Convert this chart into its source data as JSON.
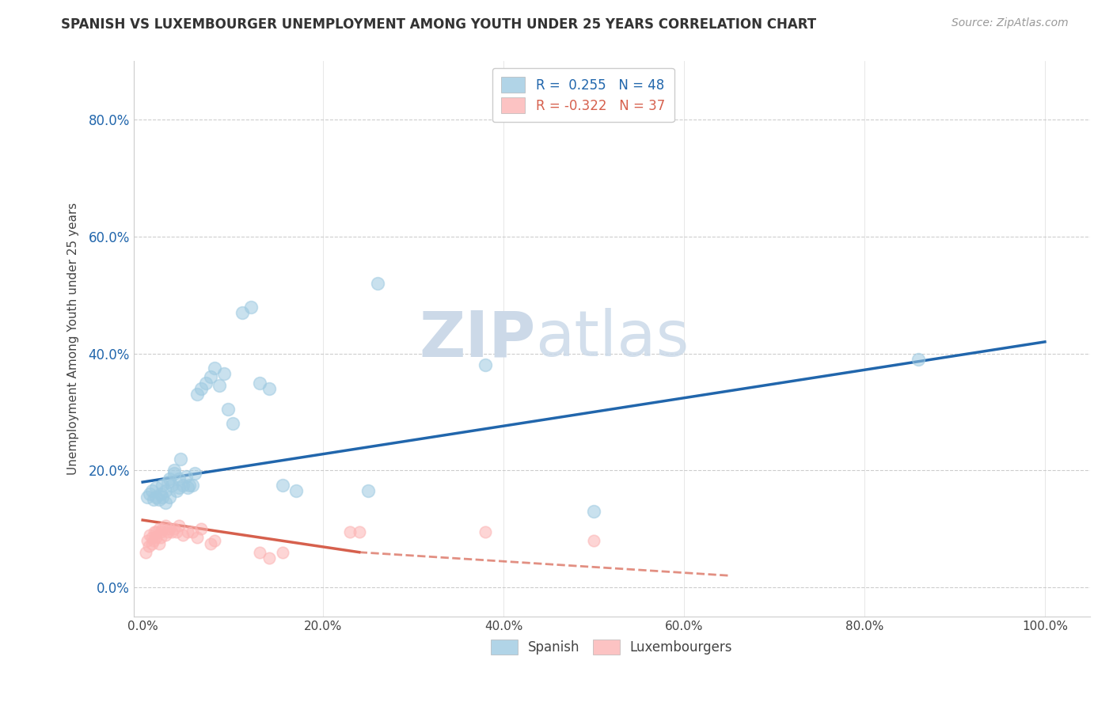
{
  "title": "SPANISH VS LUXEMBOURGER UNEMPLOYMENT AMONG YOUTH UNDER 25 YEARS CORRELATION CHART",
  "source": "Source: ZipAtlas.com",
  "ylabel": "Unemployment Among Youth under 25 years",
  "x_ticks": [
    0.0,
    0.2,
    0.4,
    0.6,
    0.8,
    1.0
  ],
  "x_tick_labels": [
    "0.0%",
    "20.0%",
    "40.0%",
    "60.0%",
    "80.0%",
    "100.0%"
  ],
  "y_ticks": [
    0.0,
    0.2,
    0.4,
    0.6,
    0.8
  ],
  "y_tick_labels": [
    "0.0%",
    "20.0%",
    "40.0%",
    "60.0%",
    "80.0%"
  ],
  "xlim": [
    -0.01,
    1.05
  ],
  "ylim": [
    -0.05,
    0.9
  ],
  "legend_r_spanish": "R =  0.255",
  "legend_n_spanish": "N = 48",
  "legend_r_lux": "R = -0.322",
  "legend_n_lux": "N = 37",
  "legend_label_spanish": "Spanish",
  "legend_label_lux": "Luxembourgers",
  "spanish_color": "#9ecae1",
  "lux_color": "#fcb4b4",
  "trend_spanish_color": "#2166ac",
  "trend_lux_color": "#d6604d",
  "watermark_zip": "ZIP",
  "watermark_atlas": "atlas",
  "watermark_color": "#ccd9e8",
  "spanish_x": [
    0.005,
    0.008,
    0.01,
    0.012,
    0.015,
    0.015,
    0.018,
    0.02,
    0.022,
    0.022,
    0.025,
    0.025,
    0.028,
    0.03,
    0.03,
    0.032,
    0.035,
    0.035,
    0.038,
    0.04,
    0.04,
    0.042,
    0.045,
    0.048,
    0.05,
    0.052,
    0.055,
    0.058,
    0.06,
    0.065,
    0.07,
    0.075,
    0.08,
    0.085,
    0.09,
    0.095,
    0.1,
    0.11,
    0.12,
    0.13,
    0.14,
    0.155,
    0.17,
    0.25,
    0.26,
    0.38,
    0.5,
    0.86
  ],
  "spanish_y": [
    0.155,
    0.16,
    0.165,
    0.15,
    0.155,
    0.17,
    0.15,
    0.16,
    0.155,
    0.175,
    0.145,
    0.165,
    0.18,
    0.155,
    0.185,
    0.175,
    0.2,
    0.195,
    0.165,
    0.17,
    0.185,
    0.22,
    0.175,
    0.19,
    0.17,
    0.175,
    0.175,
    0.195,
    0.33,
    0.34,
    0.35,
    0.36,
    0.375,
    0.345,
    0.365,
    0.305,
    0.28,
    0.47,
    0.48,
    0.35,
    0.34,
    0.175,
    0.165,
    0.165,
    0.52,
    0.38,
    0.13,
    0.39
  ],
  "lux_x": [
    0.003,
    0.005,
    0.007,
    0.008,
    0.01,
    0.01,
    0.012,
    0.013,
    0.015,
    0.015,
    0.018,
    0.018,
    0.02,
    0.02,
    0.022,
    0.025,
    0.025,
    0.028,
    0.03,
    0.032,
    0.035,
    0.038,
    0.04,
    0.045,
    0.05,
    0.055,
    0.06,
    0.065,
    0.075,
    0.08,
    0.13,
    0.14,
    0.155,
    0.23,
    0.24,
    0.38,
    0.5
  ],
  "lux_y": [
    0.06,
    0.08,
    0.07,
    0.09,
    0.075,
    0.085,
    0.08,
    0.095,
    0.085,
    0.095,
    0.075,
    0.1,
    0.085,
    0.095,
    0.1,
    0.09,
    0.105,
    0.095,
    0.1,
    0.095,
    0.1,
    0.095,
    0.105,
    0.09,
    0.095,
    0.095,
    0.085,
    0.1,
    0.075,
    0.08,
    0.06,
    0.05,
    0.06,
    0.095,
    0.095,
    0.095,
    0.08
  ],
  "trend_sp_x0": 0.0,
  "trend_sp_x1": 1.0,
  "trend_sp_y0": 0.18,
  "trend_sp_y1": 0.42,
  "trend_lx_x0": 0.0,
  "trend_lx_x1": 0.5,
  "trend_lx_y0": 0.115,
  "trend_lx_y1": 0.02,
  "trend_lx_dashed_x0": 0.25,
  "trend_lx_dashed_x1": 0.65,
  "trend_lx_dashed_y0": 0.055,
  "trend_lx_dashed_y1": 0.02
}
